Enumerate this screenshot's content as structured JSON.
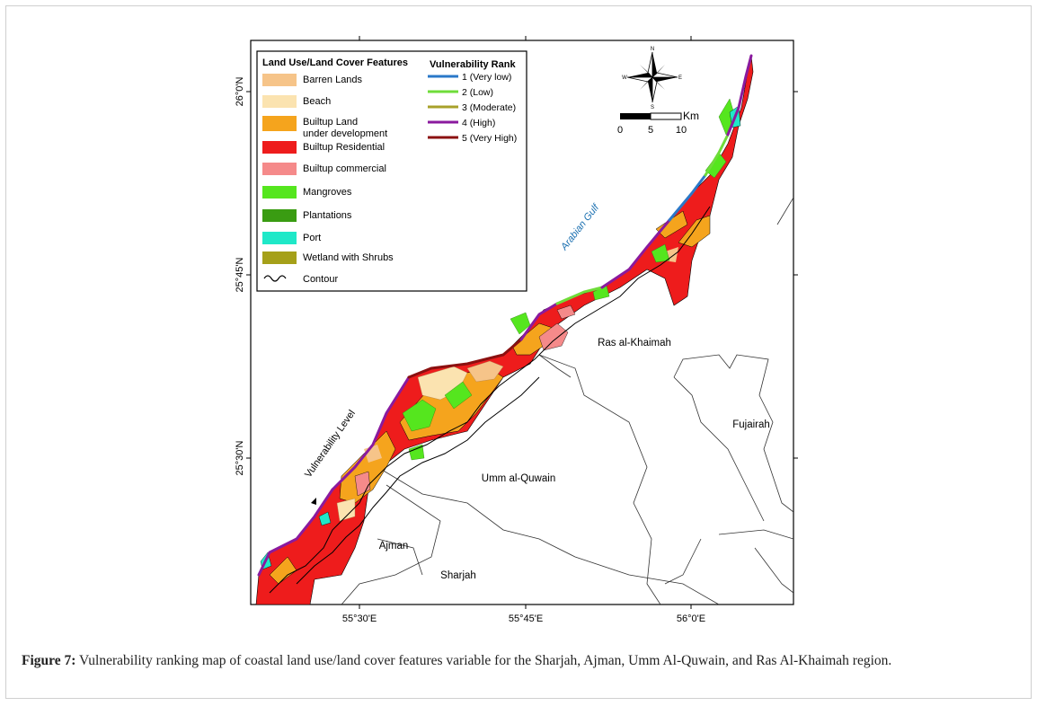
{
  "figure": {
    "label": "Figure 7:",
    "caption": " Vulnerability ranking map of coastal land use/land cover features variable for the Sharjah, Ajman, Umm Al-Quwain, and Ras Al-Khaimah region."
  },
  "map": {
    "legend_lulc": {
      "title": "Land Use/Land Cover Features",
      "items": [
        {
          "label": "Barren Lands",
          "color": "#f6c489"
        },
        {
          "label": "Beach",
          "color": "#fbe3b0"
        },
        {
          "label": "Builtup Land",
          "label2": "under development",
          "color": "#f5a41d"
        },
        {
          "label": "Builtup Residential",
          "color": "#ee1c1c"
        },
        {
          "label": "Builtup commercial",
          "color": "#f58a8a"
        },
        {
          "label": "Mangroves",
          "color": "#55e61e"
        },
        {
          "label": "Plantations",
          "color": "#3a9c12"
        },
        {
          "label": "Port",
          "color": "#1fe8c8"
        },
        {
          "label": "Wetland with Shrubs",
          "color": "#a5a019"
        },
        {
          "label": "Contour",
          "color": "#000000",
          "symbol": "~50~"
        }
      ]
    },
    "legend_rank": {
      "title": "Vulnerability Rank",
      "items": [
        {
          "label": "1 (Very low)",
          "color": "#2a78c8"
        },
        {
          "label": "2 (Low)",
          "color": "#6fdc3a"
        },
        {
          "label": "3 (Moderate)",
          "color": "#a8a12a"
        },
        {
          "label": "4 (High)",
          "color": "#8a1a9e"
        },
        {
          "label": "5 (Very High)",
          "color": "#8b1010"
        }
      ]
    },
    "north_arrow": {
      "n": "N",
      "s": "S",
      "e": "E",
      "w": "W"
    },
    "scale_bar": {
      "unit": "Km",
      "ticks": [
        "0",
        "5",
        "10"
      ]
    },
    "lat_labels": [
      "26°0'N",
      "25°45'N",
      "25°30'N"
    ],
    "lon_labels": [
      "55°30'E",
      "55°45'E",
      "56°0'E"
    ],
    "place_labels": {
      "gulf": "Arabian Gulf",
      "rak": "Ras al-Khaimah",
      "fujairah": "Fujairah",
      "uaq": "Umm al-Quwain",
      "ajman": "Ajman",
      "sharjah": "Sharjah"
    },
    "annotation": "Vulnerability Level"
  }
}
